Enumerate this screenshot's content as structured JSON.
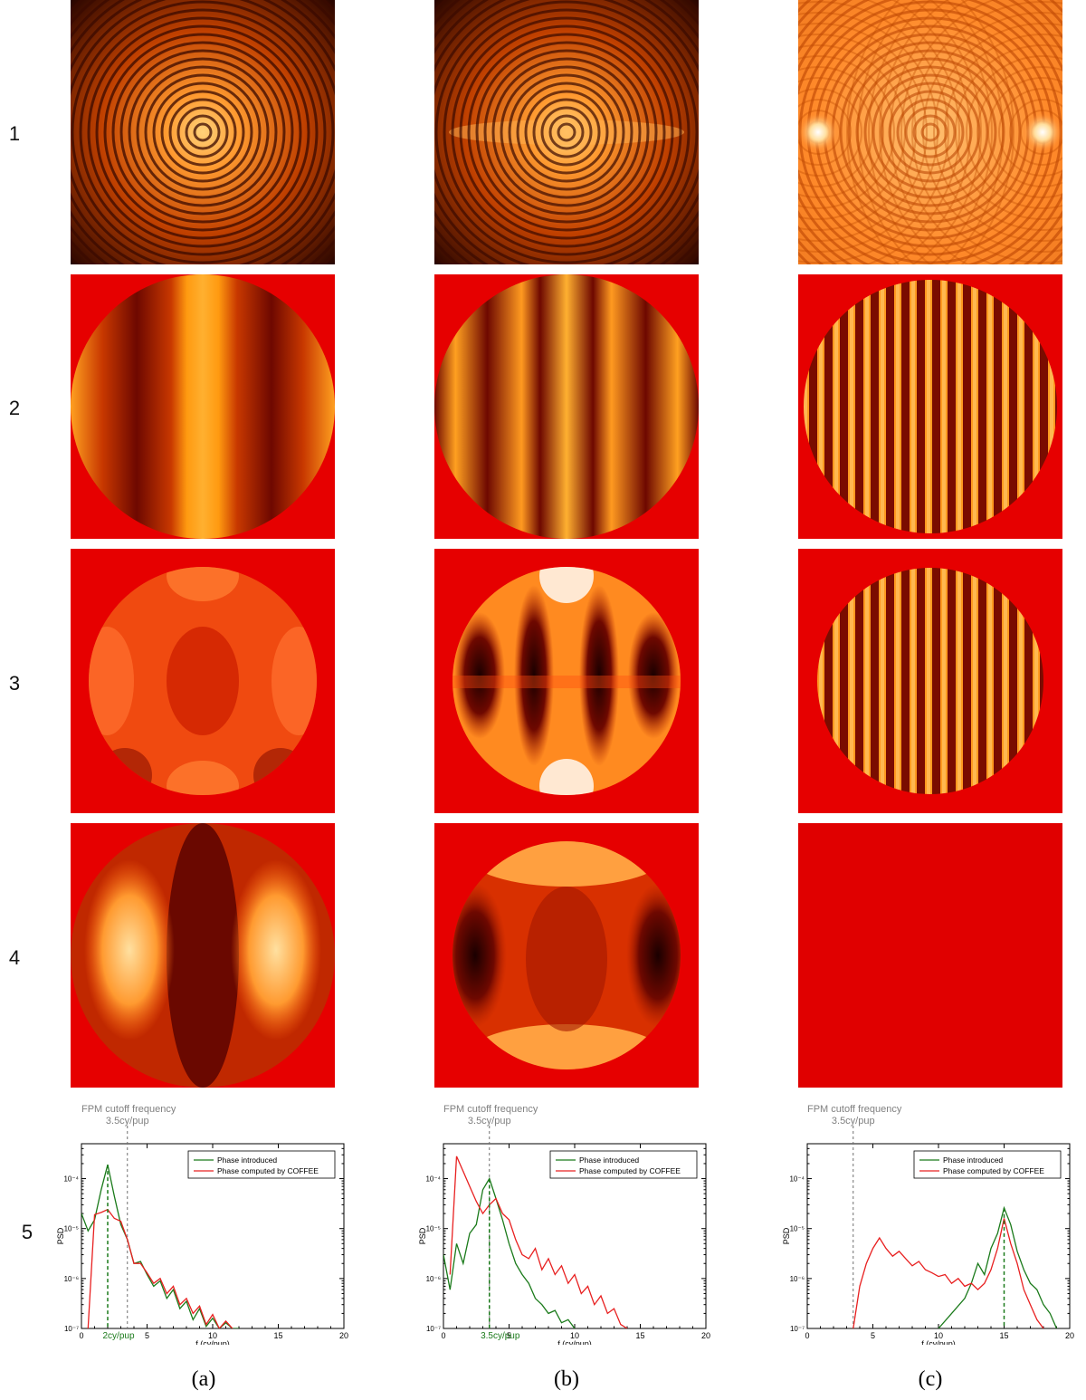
{
  "row_labels": [
    "1",
    "2",
    "3",
    "4",
    "5"
  ],
  "column_labels": [
    "(a)",
    "(b)",
    "(c)"
  ],
  "colors": {
    "background_red": "#e60000",
    "introduced": "#1a7a1a",
    "computed": "#e82020",
    "cutoff_line": "#707070"
  },
  "chart_data": [
    {
      "type": "line",
      "annotation_top": "FPM cutoff frequency",
      "cutoff_label": "3.5cy/pup",
      "cutoff_x": 3.5,
      "peak_label": "2cy/pup",
      "peak_x": 2,
      "xlabel": "f (cy/pup)",
      "ylabel": "PSD",
      "xlim": [
        0,
        20
      ],
      "ylim": [
        1e-07,
        0.0005
      ],
      "log_y": true,
      "xticks": [
        "0",
        "5",
        "10",
        "15",
        "20"
      ],
      "yticks": [
        "10⁻⁷",
        "10⁻⁶",
        "10⁻⁵",
        "10⁻⁴"
      ],
      "legend_position": "top-right",
      "series": [
        {
          "name": "Phase introduced",
          "x": [
            0,
            0.5,
            1,
            1.5,
            2,
            2.5,
            3,
            3.5,
            4,
            4.5,
            5,
            5.5,
            6,
            6.5,
            7,
            7.5,
            8,
            8.5,
            9,
            9.5,
            10,
            10.5,
            11,
            11.5,
            12
          ],
          "values": [
            2e-05,
            9e-06,
            1.5e-05,
            6e-05,
            0.00019,
            4.5e-05,
            1.2e-05,
            6e-06,
            2e-06,
            2.2e-06,
            1.2e-06,
            7e-07,
            9e-07,
            4e-07,
            6e-07,
            2.5e-07,
            3.5e-07,
            1.5e-07,
            2.5e-07,
            1.1e-07,
            1.6e-07,
            1e-07,
            1.3e-07,
            1e-07,
            1e-07
          ]
        },
        {
          "name": "Phase computed by COFFEE",
          "x": [
            0.5,
            1,
            1.5,
            2,
            2.5,
            3,
            3.5,
            4,
            4.5,
            5,
            5.5,
            6,
            6.5,
            7,
            7.5,
            8,
            8.5,
            9,
            9.5,
            10,
            10.5,
            11,
            11.5
          ],
          "values": [
            1e-07,
            1.9e-05,
            2.1e-05,
            2.4e-05,
            1.6e-05,
            1.4e-05,
            6e-06,
            2e-06,
            2e-06,
            1.3e-06,
            8e-07,
            1e-06,
            5e-07,
            7e-07,
            3e-07,
            4e-07,
            2e-07,
            2.8e-07,
            1.2e-07,
            1.9e-07,
            1e-07,
            1.4e-07,
            1e-07
          ]
        }
      ]
    },
    {
      "type": "line",
      "annotation_top": "FPM cutoff frequency",
      "cutoff_label": "3.5cy/pup",
      "cutoff_x": 3.5,
      "peak_label": "3.5cy/pup",
      "peak_x": 3.5,
      "xlabel": "f (cy/pup)",
      "ylabel": "PSD",
      "xlim": [
        0,
        20
      ],
      "ylim": [
        1e-07,
        0.0005
      ],
      "log_y": true,
      "xticks": [
        "0",
        "5",
        "10",
        "15",
        "20"
      ],
      "yticks": [
        "10⁻⁷",
        "10⁻⁶",
        "10⁻⁵",
        "10⁻⁴"
      ],
      "legend_position": "top-right",
      "series": [
        {
          "name": "Phase introduced",
          "x": [
            0,
            0.5,
            1,
            1.5,
            2,
            2.5,
            3,
            3.5,
            4,
            4.5,
            5,
            5.5,
            6,
            6.5,
            7,
            7.5,
            8,
            8.5,
            9,
            9.5,
            10
          ],
          "values": [
            3e-06,
            6e-07,
            5e-06,
            2e-06,
            8e-06,
            1.2e-05,
            6e-05,
            0.0001,
            4e-05,
            1.5e-05,
            5e-06,
            2e-06,
            1.2e-06,
            8e-07,
            4e-07,
            3e-07,
            2e-07,
            2.3e-07,
            1.3e-07,
            1.5e-07,
            1e-07
          ]
        },
        {
          "name": "Phase computed by COFFEE",
          "x": [
            0.5,
            1,
            1.5,
            2,
            2.5,
            3,
            3.5,
            4,
            4.5,
            5,
            5.5,
            6,
            6.5,
            7,
            7.5,
            8,
            8.5,
            9,
            9.5,
            10,
            10.5,
            11,
            11.5,
            12,
            12.5,
            13,
            13.5,
            14
          ],
          "values": [
            1.2e-06,
            0.00028,
            0.00014,
            7e-05,
            3.5e-05,
            2e-05,
            3e-05,
            4e-05,
            2e-05,
            1.5e-05,
            6e-06,
            3e-06,
            2.5e-06,
            4e-06,
            1.5e-06,
            2.5e-06,
            1.2e-06,
            1.8e-06,
            8e-07,
            1.2e-06,
            5e-07,
            7e-07,
            3e-07,
            4.5e-07,
            2e-07,
            2.5e-07,
            1.2e-07,
            1e-07
          ]
        }
      ]
    },
    {
      "type": "line",
      "annotation_top": "FPM cutoff frequency",
      "cutoff_label": "3.5cy/pup",
      "cutoff_x": 3.5,
      "peak_label": "",
      "peak_x": 15,
      "xlabel": "f (cy/pup)",
      "ylabel": "PSD",
      "xlim": [
        0,
        20
      ],
      "ylim": [
        1e-07,
        0.0005
      ],
      "log_y": true,
      "xticks": [
        "0",
        "5",
        "10",
        "15",
        "20"
      ],
      "yticks": [
        "10⁻⁷",
        "10⁻⁶",
        "10⁻⁵",
        "10⁻⁴"
      ],
      "legend_position": "top-right",
      "series": [
        {
          "name": "Phase introduced",
          "x": [
            10,
            11,
            12,
            12.5,
            13,
            13.5,
            14,
            14.5,
            15,
            15.5,
            16,
            16.5,
            17,
            17.5,
            18,
            18.5,
            19
          ],
          "values": [
            1e-07,
            2e-07,
            4e-07,
            8e-07,
            2e-06,
            1.2e-06,
            4e-06,
            8e-06,
            2.6e-05,
            1.2e-05,
            3.5e-06,
            1.5e-06,
            8e-07,
            6e-07,
            3e-07,
            2e-07,
            1e-07
          ]
        },
        {
          "name": "Phase computed by COFFEE",
          "x": [
            3.5,
            4,
            4.5,
            5,
            5.5,
            6,
            6.5,
            7,
            7.5,
            8,
            8.5,
            9,
            9.5,
            10,
            10.5,
            11,
            11.5,
            12,
            12.5,
            13,
            13.5,
            14,
            14.5,
            15,
            15.5,
            16,
            16.5,
            17,
            17.5,
            18
          ],
          "values": [
            1e-07,
            7e-07,
            2e-06,
            4e-06,
            6.5e-06,
            4e-06,
            2.8e-06,
            3.5e-06,
            2.5e-06,
            1.8e-06,
            2.2e-06,
            1.5e-06,
            1.3e-06,
            1.1e-06,
            1.2e-06,
            8e-07,
            1e-06,
            7e-07,
            8e-07,
            6e-07,
            8e-07,
            1.5e-06,
            4e-06,
            1.6e-05,
            5e-06,
            2e-06,
            6e-07,
            3e-07,
            1.5e-07,
            1e-07
          ]
        }
      ]
    }
  ]
}
